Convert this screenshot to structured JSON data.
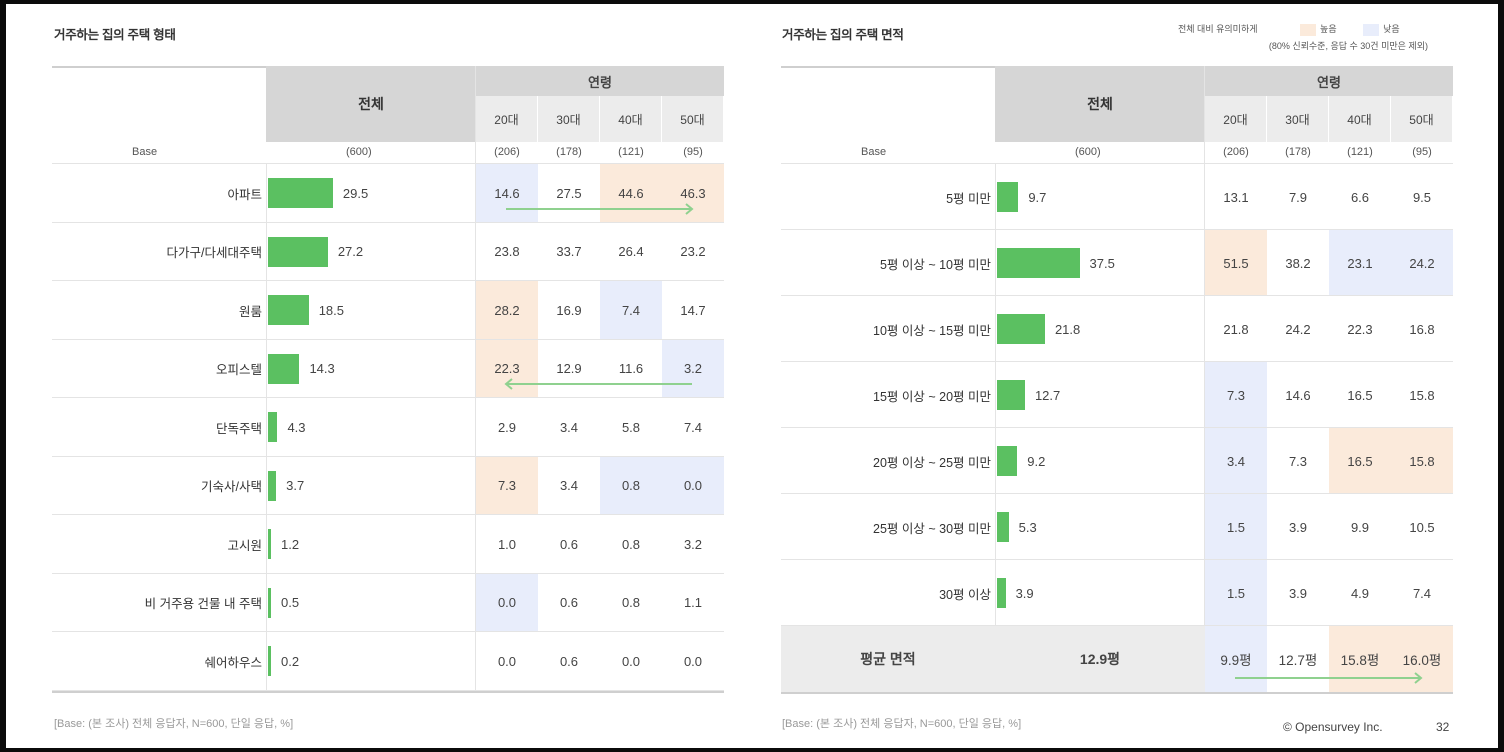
{
  "left": {
    "title": "거주하는 집의 주택 형태",
    "header_total": "전체",
    "header_group": "연령",
    "age_groups": [
      "20대",
      "30대",
      "40대",
      "50대"
    ],
    "base_label": "Base",
    "base_total": "(600)",
    "base_ages": [
      "(206)",
      "(178)",
      "(121)",
      "(95)"
    ],
    "footnote": "[Base: (본 조사) 전체 응답자, N=600, 단일 응답, %]"
  },
  "right": {
    "title": "거주하는 집의 주택 면적",
    "legend_caption": "전체 대비 유의미하게",
    "legend_note": "(80% 신뢰수준, 응답 수 30건 미만은 제외)",
    "legend_high": "높음",
    "legend_low": "낮음",
    "header_total": "전체",
    "header_group": "연령",
    "age_groups": [
      "20대",
      "30대",
      "40대",
      "50대"
    ],
    "base_label": "Base",
    "base_total": "(600)",
    "base_ages": [
      "(206)",
      "(178)",
      "(121)",
      "(95)"
    ],
    "avg_label": "평균 면적",
    "avg_total": "12.9평",
    "avg_ages": [
      "9.9평",
      "12.7평",
      "15.8평",
      "16.0평"
    ],
    "footnote": "[Base: (본 조사) 전체 응답자, N=600, 단일 응답, %]"
  },
  "colors": {
    "bar": "#5bc061",
    "high": "#fbeadb",
    "low": "#e8edfb",
    "arrow": "#8fd18f"
  },
  "footer": {
    "copyright": "© Opensurvey Inc.",
    "page_number": "32"
  },
  "chart_data": [
    {
      "type": "table",
      "title": "거주하는 집의 주택 형태",
      "categories": [
        "아파트",
        "다가구/다세대주택",
        "원룸",
        "오피스텔",
        "단독주택",
        "기숙사/사택",
        "고시원",
        "비 거주용 건물 내 주택",
        "쉐어하우스"
      ],
      "total": [
        29.5,
        27.2,
        18.5,
        14.3,
        4.3,
        3.7,
        1.2,
        0.5,
        0.2
      ],
      "series": [
        {
          "name": "20대",
          "values": [
            14.6,
            23.8,
            28.2,
            22.3,
            2.9,
            7.3,
            1.0,
            0.0,
            0.0
          ],
          "flags": [
            "lo",
            "",
            "hi",
            "hi",
            "",
            "hi",
            "",
            "lo",
            ""
          ]
        },
        {
          "name": "30대",
          "values": [
            27.5,
            33.7,
            16.9,
            12.9,
            3.4,
            3.4,
            0.6,
            0.6,
            0.6
          ],
          "flags": [
            "",
            "",
            "",
            "",
            "",
            "",
            "",
            "",
            ""
          ]
        },
        {
          "name": "40대",
          "values": [
            44.6,
            26.4,
            7.4,
            11.6,
            5.8,
            0.8,
            0.8,
            0.8,
            0.0
          ],
          "flags": [
            "hi",
            "",
            "lo",
            "",
            "",
            "lo",
            "",
            "",
            ""
          ]
        },
        {
          "name": "50대",
          "values": [
            46.3,
            23.2,
            14.7,
            3.2,
            7.4,
            0.0,
            3.2,
            1.1,
            0.0
          ],
          "flags": [
            "hi",
            "",
            "",
            "lo",
            "",
            "lo",
            "",
            "",
            ""
          ]
        }
      ]
    },
    {
      "type": "table",
      "title": "거주하는 집의 주택 면적",
      "categories": [
        "5평 미만",
        "5평 이상 ~ 10평 미만",
        "10평 이상 ~ 15평 미만",
        "15평 이상 ~ 20평 미만",
        "20평 이상 ~ 25평 미만",
        "25평 이상 ~ 30평 미만",
        "30평 이상"
      ],
      "total": [
        9.7,
        37.5,
        21.8,
        12.7,
        9.2,
        5.3,
        3.9
      ],
      "series": [
        {
          "name": "20대",
          "values": [
            13.1,
            51.5,
            21.8,
            7.3,
            3.4,
            1.5,
            1.5
          ],
          "flags": [
            "",
            "hi",
            "",
            "lo",
            "lo",
            "lo",
            "lo"
          ]
        },
        {
          "name": "30대",
          "values": [
            7.9,
            38.2,
            24.2,
            14.6,
            7.3,
            3.9,
            3.9
          ],
          "flags": [
            "",
            "",
            "",
            "",
            "",
            "",
            ""
          ]
        },
        {
          "name": "40대",
          "values": [
            6.6,
            23.1,
            22.3,
            16.5,
            16.5,
            9.9,
            4.9
          ],
          "flags": [
            "",
            "lo",
            "",
            "",
            "hi",
            "",
            ""
          ]
        },
        {
          "name": "50대",
          "values": [
            9.5,
            24.2,
            16.8,
            15.8,
            15.8,
            10.5,
            7.4
          ],
          "flags": [
            "",
            "lo",
            "",
            "",
            "hi",
            "",
            ""
          ]
        }
      ],
      "avg_flags": [
        "lo",
        "",
        "hi",
        "hi"
      ]
    }
  ]
}
